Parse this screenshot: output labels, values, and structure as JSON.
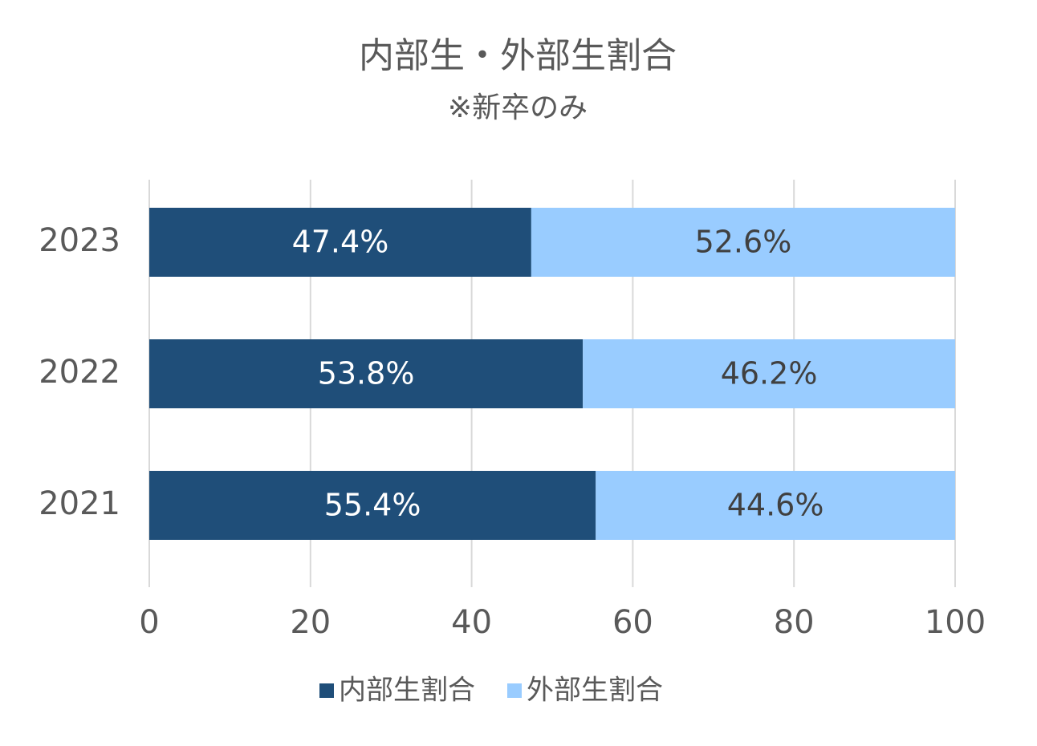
{
  "chart_data": {
    "type": "stacked-bar-horizontal",
    "title": "内部生・外部生割合",
    "subtitle": "※新卒のみ",
    "categories": [
      "2023",
      "2022",
      "2021"
    ],
    "series": [
      {
        "name": "内部生割合",
        "color": "#1f4e79",
        "values": [
          47.4,
          53.8,
          55.4
        ],
        "value_labels": [
          "47.4%",
          "53.8%",
          "55.4%"
        ]
      },
      {
        "name": "外部生割合",
        "color": "#99ccff",
        "values": [
          52.6,
          46.2,
          44.6
        ],
        "value_labels": [
          "52.6%",
          "46.2%",
          "44.6%"
        ]
      }
    ],
    "xlim": [
      0,
      100
    ],
    "xticks": [
      0,
      20,
      40,
      60,
      80,
      100
    ],
    "grid": true,
    "legend": "bottom"
  }
}
